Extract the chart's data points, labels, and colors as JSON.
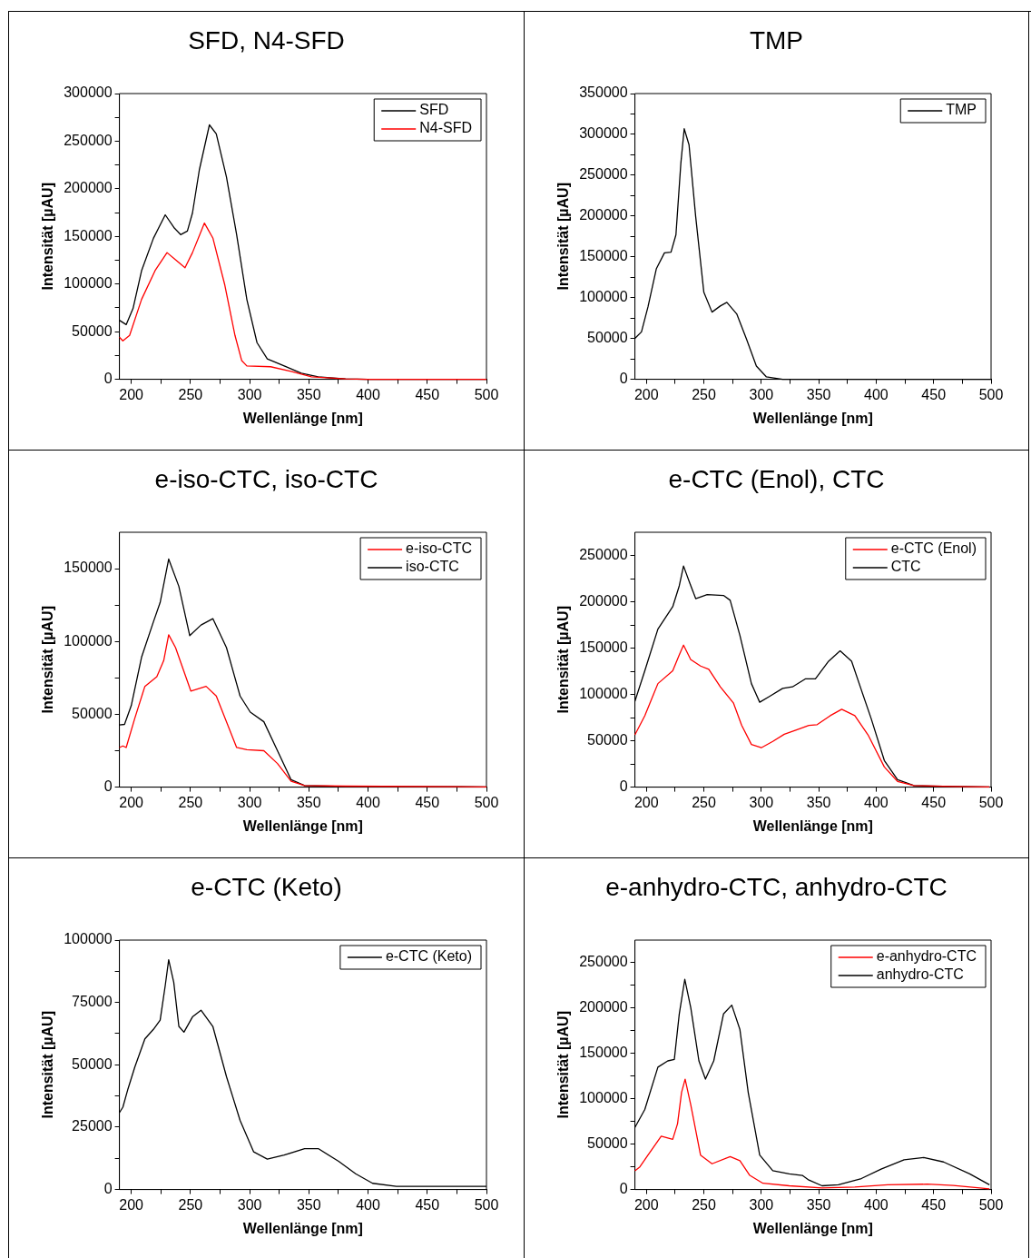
{
  "chart_data": [
    {
      "type": "line",
      "title": "SFD, N4-SFD",
      "xlabel": "Wellenlänge [nm]",
      "ylabel": "Intensität [µAU]",
      "legend": "top right",
      "xlim": [
        190,
        500
      ],
      "ylim": [
        0,
        300000
      ],
      "xticks": [
        200,
        {
          "value": 225,
          "label": null
        },
        250,
        {
          "value": 275,
          "label": null
        },
        300,
        {
          "value": 325,
          "label": null
        },
        350,
        {
          "value": 375,
          "label": null
        },
        400,
        {
          "value": 425,
          "label": null
        },
        450,
        {
          "value": 475,
          "label": null
        },
        500
      ],
      "yticks": [
        0,
        {
          "value": 25000,
          "label": null
        },
        50000,
        {
          "value": 75000,
          "label": null
        },
        100000,
        {
          "value": 125000,
          "label": null
        },
        150000,
        {
          "value": 175000,
          "label": null
        },
        200000,
        {
          "value": 225000,
          "label": null
        },
        250000,
        {
          "value": 275000,
          "label": null
        },
        300000
      ],
      "series": [
        {
          "name": "SFD",
          "color": "#000000",
          "x": [
            190,
            195.7,
            201.5,
            208.7,
            218.7,
            228.7,
            236,
            241.7,
            247.4,
            251.7,
            257.5,
            266,
            271.8,
            280.4,
            289,
            297.6,
            306.2,
            314.9,
            329.2,
            343.6,
            357.9,
            380.9,
            400,
            500
          ],
          "values": [
            62000,
            57400,
            74400,
            114000,
            148000,
            172700,
            159400,
            151900,
            155700,
            174600,
            219900,
            267100,
            257700,
            212300,
            151900,
            83900,
            38500,
            21500,
            14000,
            6400,
            2600,
            400,
            0,
            0
          ]
        },
        {
          "name": "N4-SFD",
          "color": "#ff0000",
          "x": [
            190,
            192.9,
            198.6,
            208.7,
            220.1,
            230.2,
            237.4,
            245.4,
            251.7,
            261.8,
            269,
            279,
            287.6,
            293.3,
            297.6,
            317.7,
            335,
            352.2,
            380.9,
            400,
            500
          ],
          "values": [
            44200,
            40400,
            46100,
            83900,
            114100,
            133000,
            125400,
            117100,
            133000,
            164000,
            148100,
            99000,
            46100,
            19600,
            14000,
            13200,
            8300,
            2600,
            400,
            0,
            0
          ]
        }
      ]
    },
    {
      "type": "line",
      "title": "TMP",
      "xlabel": "Wellenlänge [nm]",
      "ylabel": "Intensität [µAU]",
      "legend": "top right",
      "xlim": [
        190,
        500
      ],
      "ylim": [
        0,
        350000
      ],
      "xticks": [
        200,
        {
          "value": 225,
          "label": null
        },
        250,
        {
          "value": 275,
          "label": null
        },
        300,
        {
          "value": 325,
          "label": null
        },
        350,
        {
          "value": 375,
          "label": null
        },
        400,
        {
          "value": 425,
          "label": null
        },
        450,
        {
          "value": 475,
          "label": null
        },
        500
      ],
      "yticks": [
        0,
        {
          "value": 25000,
          "label": null
        },
        50000,
        {
          "value": 75000,
          "label": null
        },
        100000,
        {
          "value": 125000,
          "label": null
        },
        150000,
        {
          "value": 175000,
          "label": null
        },
        200000,
        {
          "value": 225000,
          "label": null
        },
        250000,
        {
          "value": 275000,
          "label": null
        },
        300000,
        {
          "value": 325000,
          "label": null
        },
        350000
      ],
      "series": [
        {
          "name": "TMP",
          "color": "#000000",
          "x": [
            190,
            195.7,
            201.4,
            208.6,
            215.7,
            221.4,
            225.7,
            230,
            232.9,
            237.1,
            242.9,
            250,
            257.1,
            264.3,
            270,
            278.6,
            287.1,
            295.7,
            304.3,
            318.6,
            500
          ],
          "values": [
            50200,
            58100,
            88900,
            135200,
            154900,
            155800,
            177000,
            265000,
            306900,
            287100,
            199100,
            106500,
            82300,
            89800,
            94200,
            80100,
            49300,
            16300,
            3100,
            0,
            0
          ]
        }
      ]
    },
    {
      "type": "line",
      "title": "e-iso-CTC, iso-CTC",
      "xlabel": "Wellenlänge [nm]",
      "ylabel": "Intensität [µAU]",
      "legend": "top right",
      "xlim": [
        190,
        500
      ],
      "ylim": [
        0,
        175000
      ],
      "xticks": [
        200,
        {
          "value": 225,
          "label": null
        },
        250,
        {
          "value": 275,
          "label": null
        },
        300,
        {
          "value": 325,
          "label": null
        },
        350,
        {
          "value": 375,
          "label": null
        },
        400,
        {
          "value": 425,
          "label": null
        },
        450,
        {
          "value": 475,
          "label": null
        },
        500
      ],
      "yticks": [
        0,
        {
          "value": 25000,
          "label": null
        },
        50000,
        {
          "value": 75000,
          "label": null
        },
        100000,
        {
          "value": 125000,
          "label": null
        },
        150000
      ],
      "series": [
        {
          "name": "e-iso-CTC",
          "color": "#ff0000",
          "x": [
            190,
            192.9,
            195.7,
            202.9,
            211.5,
            221.6,
            227.4,
            231.6,
            237.4,
            250.3,
            263.2,
            271.8,
            289,
            297.6,
            312,
            323.5,
            335,
            346.4,
            380.9,
            500
          ],
          "values": [
            27200,
            28300,
            27200,
            47100,
            69200,
            75900,
            86900,
            104600,
            95800,
            66000,
            69200,
            62600,
            27200,
            25700,
            25000,
            16200,
            4000,
            1100,
            700,
            200
          ]
        },
        {
          "name": "iso-CTC",
          "color": "#000000",
          "x": [
            190,
            194.3,
            200,
            208.7,
            218.7,
            224.4,
            231.6,
            240.2,
            249.4,
            258.9,
            268.9,
            280.4,
            291.9,
            300.5,
            312,
            323.5,
            335,
            346.4,
            380.9,
            500
          ],
          "values": [
            42700,
            43100,
            56000,
            89200,
            113500,
            126800,
            156600,
            137800,
            104000,
            111300,
            115700,
            95800,
            62600,
            51500,
            44900,
            25000,
            5100,
            1100,
            400,
            200
          ]
        }
      ]
    },
    {
      "type": "line",
      "title": "e-CTC (Enol), CTC",
      "xlabel": "Wellenlänge [nm]",
      "ylabel": "Intensität [µAU]",
      "legend": "top right",
      "xlim": [
        190,
        500
      ],
      "ylim": [
        0,
        275000
      ],
      "xticks": [
        200,
        {
          "value": 225,
          "label": null
        },
        250,
        {
          "value": 275,
          "label": null
        },
        300,
        {
          "value": 325,
          "label": null
        },
        350,
        {
          "value": 375,
          "label": null
        },
        400,
        {
          "value": 425,
          "label": null
        },
        450,
        {
          "value": 475,
          "label": null
        },
        500
      ],
      "yticks": [
        0,
        {
          "value": 25000,
          "label": null
        },
        50000,
        {
          "value": 75000,
          "label": null
        },
        100000,
        {
          "value": 125000,
          "label": null
        },
        150000,
        {
          "value": 175000,
          "label": null
        },
        200000,
        {
          "value": 225000,
          "label": null
        },
        250000
      ],
      "series": [
        {
          "name": "e-CTC (Enol)",
          "color": "#ff0000",
          "x": [
            190,
            198.6,
            210,
            222.9,
            228.6,
            232.3,
            238.6,
            247.1,
            254.3,
            264.3,
            275.7,
            282.9,
            291.4,
            300,
            310,
            320,
            330,
            341.4,
            348.6,
            360,
            370,
            381.4,
            392.9,
            407.1,
            418.6,
            432.9,
            467.1,
            498.6
          ],
          "values": [
            56400,
            77100,
            111700,
            125500,
            142800,
            153200,
            137600,
            130700,
            127200,
            108200,
            90900,
            66700,
            46000,
            42500,
            49400,
            57100,
            61500,
            66700,
            67400,
            77100,
            84000,
            77100,
            56400,
            21800,
            6200,
            1700,
            700,
            300
          ]
        },
        {
          "name": "CTC",
          "color": "#000000",
          "x": [
            190,
            198.6,
            210,
            222.9,
            228.6,
            232.3,
            237.1,
            242.9,
            252.9,
            267.1,
            272.9,
            281.4,
            291.4,
            298.6,
            307.1,
            318.6,
            327.1,
            338.6,
            347.1,
            358.6,
            368.6,
            378.6,
            387.1,
            395.7,
            407.1,
            418.6,
            432.9,
            467.1,
            498.6
          ],
          "values": [
            92700,
            125500,
            170500,
            194700,
            217200,
            238600,
            222400,
            203400,
            207800,
            206800,
            201600,
            163600,
            111700,
            91600,
            97900,
            106500,
            108200,
            116900,
            116900,
            135900,
            147000,
            135900,
            104800,
            73700,
            28700,
            8000,
            1700,
            700,
            300
          ]
        }
      ]
    },
    {
      "type": "line",
      "title": "e-CTC (Keto)",
      "xlabel": "Wellenlänge [nm]",
      "ylabel": "Intensität [µAU]",
      "legend": "top right",
      "xlim": [
        190,
        500
      ],
      "ylim": [
        0,
        100000
      ],
      "xticks": [
        200,
        {
          "value": 225,
          "label": null
        },
        250,
        {
          "value": 275,
          "label": null
        },
        300,
        {
          "value": 325,
          "label": null
        },
        350,
        {
          "value": 375,
          "label": null
        },
        400,
        {
          "value": 425,
          "label": null
        },
        450,
        {
          "value": 475,
          "label": null
        },
        500
      ],
      "yticks": [
        0,
        {
          "value": 12500,
          "label": null
        },
        25000,
        {
          "value": 37500,
          "label": null
        },
        50000,
        {
          "value": 62500,
          "label": null
        },
        75000,
        {
          "value": 87500,
          "label": null
        },
        100000
      ],
      "series": [
        {
          "name": "e-CTC (Keto)",
          "color": "#000000",
          "x": [
            190,
            192.9,
            197.2,
            203,
            211.5,
            218.7,
            224.4,
            228.7,
            231.6,
            235.9,
            240.2,
            244.5,
            251.7,
            258.9,
            268.9,
            280.4,
            291.9,
            303.4,
            314.9,
            329.2,
            346.4,
            357.9,
            375.1,
            389.5,
            403.8,
            423.9,
            500
          ],
          "values": [
            30800,
            33000,
            40300,
            49100,
            60400,
            64200,
            67900,
            81800,
            92100,
            83000,
            65400,
            63100,
            69200,
            71900,
            65400,
            45300,
            27700,
            15100,
            12200,
            13800,
            16400,
            16400,
            11300,
            6300,
            2500,
            1300,
            1300
          ]
        }
      ]
    },
    {
      "type": "line",
      "title": "e-anhydro-CTC, anhydro-CTC",
      "xlabel": "Wellenlänge [nm]",
      "ylabel": "Intensität [µAU]",
      "legend": "top right",
      "xlim": [
        190,
        500
      ],
      "ylim": [
        0,
        275000
      ],
      "xticks": [
        200,
        {
          "value": 225,
          "label": null
        },
        250,
        {
          "value": 275,
          "label": null
        },
        300,
        {
          "value": 325,
          "label": null
        },
        350,
        {
          "value": 375,
          "label": null
        },
        400,
        {
          "value": 425,
          "label": null
        },
        450,
        {
          "value": 475,
          "label": null
        },
        500
      ],
      "yticks": [
        0,
        {
          "value": 25000,
          "label": null
        },
        50000,
        {
          "value": 75000,
          "label": null
        },
        100000,
        {
          "value": 125000,
          "label": null
        },
        150000,
        {
          "value": 175000,
          "label": null
        },
        200000,
        {
          "value": 225000,
          "label": null
        },
        250000
      ],
      "series": [
        {
          "name": "e-anhydro-CTC",
          "color": "#ff0000",
          "x": [
            190,
            194.3,
            201.4,
            212.9,
            222.9,
            227.1,
            230.6,
            233.7,
            238.6,
            247.1,
            257.1,
            272.9,
            281.4,
            290,
            301.4,
            324.3,
            352.9,
            381.4,
            410,
            444.3,
            467.1,
            498.6
          ],
          "values": [
            20700,
            24900,
            38000,
            58800,
            55300,
            72600,
            107200,
            121700,
            93400,
            38000,
            28400,
            36300,
            31800,
            15600,
            6900,
            4100,
            1700,
            2800,
            5200,
            5900,
            4500,
            700
          ]
        },
        {
          "name": "anhydro-CTC",
          "color": "#000000",
          "x": [
            190,
            198.6,
            210,
            218.6,
            224.3,
            228.6,
            233.4,
            238.6,
            245.7,
            251.4,
            258.6,
            267.1,
            274.3,
            281.4,
            288.6,
            298.6,
            310,
            324.3,
            335.7,
            341.4,
            352.9,
            367.1,
            387.1,
            404.3,
            424.3,
            441.4,
            458.6,
            481.4,
            498.6
          ],
          "values": [
            68500,
            88200,
            134900,
            141800,
            143500,
            193600,
            231700,
            200600,
            141800,
            121700,
            141800,
            193600,
            203300,
            176300,
            107200,
            38000,
            20700,
            17200,
            15600,
            10400,
            4100,
            5200,
            12100,
            22500,
            32800,
            35300,
            30400,
            17300,
            5200
          ]
        }
      ]
    }
  ]
}
